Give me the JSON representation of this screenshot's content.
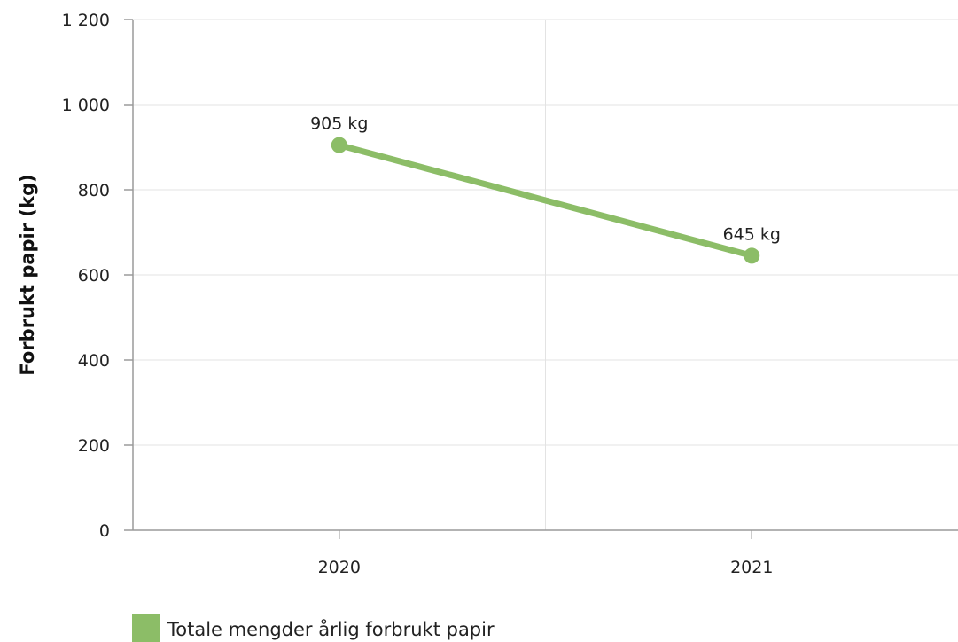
{
  "chart_data": {
    "type": "line",
    "ylabel": "Forbrukt papir (kg)",
    "xlabel": "",
    "categories": [
      "2020",
      "2021"
    ],
    "ylim": [
      0,
      1200
    ],
    "yticks": [
      0,
      200,
      400,
      600,
      800,
      1000,
      1200
    ],
    "ytick_labels": [
      "0",
      "200",
      "400",
      "600",
      "800",
      "1 000",
      "1 200"
    ],
    "grid": true,
    "legend_position": "bottom-left",
    "series": [
      {
        "name": "Totale mengder årlig forbrukt papir",
        "values": [
          905,
          645
        ],
        "data_labels": [
          "905 kg",
          "645 kg"
        ],
        "color": "#8cbd67"
      }
    ]
  }
}
